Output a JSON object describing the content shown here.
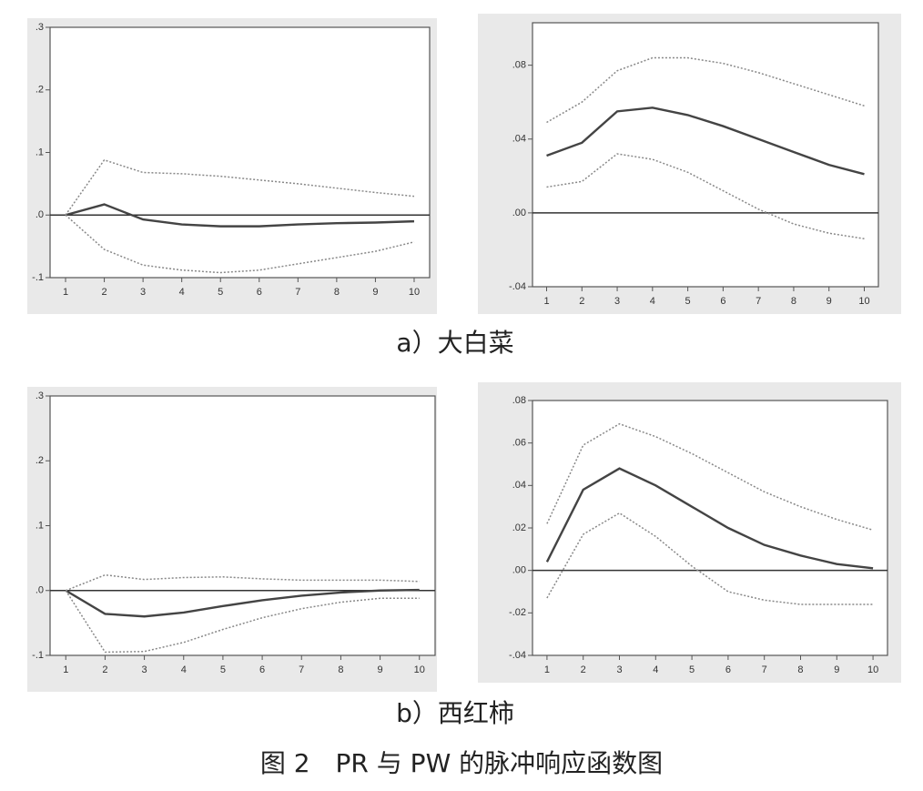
{
  "chart_data": [
    {
      "type": "line",
      "x": [
        1,
        2,
        3,
        4,
        5,
        6,
        7,
        8,
        9,
        10
      ],
      "xlim": [
        0.6,
        10.4
      ],
      "xticks": [
        1,
        2,
        3,
        4,
        5,
        6,
        7,
        8,
        9,
        10
      ],
      "ylim": [
        -0.1,
        0.3
      ],
      "yticks": [
        {
          "value": -0.1,
          "label": "-.1"
        },
        {
          "value": 0,
          "label": ".0"
        },
        {
          "value": 0.1,
          "label": ".1"
        },
        {
          "value": 0.2,
          "label": ".2"
        },
        {
          "value": 0.3,
          "label": ".3"
        }
      ],
      "reference_line": 0,
      "series": [
        {
          "color": "#444444",
          "dashed": false,
          "values": [
            0,
            0.017,
            -0.007,
            -0.015,
            -0.018,
            -0.018,
            -0.015,
            -0.013,
            -0.012,
            -0.01
          ]
        },
        {
          "color": "#888888",
          "dashed": true,
          "values": [
            0,
            0.088,
            0.068,
            0.066,
            0.062,
            0.056,
            0.05,
            0.043,
            0.036,
            0.03
          ]
        },
        {
          "color": "#888888",
          "dashed": true,
          "values": [
            0,
            -0.055,
            -0.08,
            -0.088,
            -0.092,
            -0.088,
            -0.078,
            -0.068,
            -0.058,
            -0.043
          ]
        }
      ]
    },
    {
      "type": "line",
      "x": [
        1,
        2,
        3,
        4,
        5,
        6,
        7,
        8,
        9,
        10
      ],
      "xlim": [
        0.6,
        10.4
      ],
      "xticks": [
        1,
        2,
        3,
        4,
        5,
        6,
        7,
        8,
        9,
        10
      ],
      "ylim": [
        -0.04,
        0.103
      ],
      "yticks": [
        {
          "value": -0.04,
          "label": "-.04"
        },
        {
          "value": 0,
          "label": ".00"
        },
        {
          "value": 0.04,
          "label": ".04"
        },
        {
          "value": 0.08,
          "label": ".08"
        }
      ],
      "reference_line": 0,
      "series": [
        {
          "color": "#444444",
          "dashed": false,
          "values": [
            0.031,
            0.038,
            0.055,
            0.057,
            0.053,
            0.047,
            0.04,
            0.033,
            0.026,
            0.021
          ]
        },
        {
          "color": "#888888",
          "dashed": true,
          "values": [
            0.049,
            0.06,
            0.077,
            0.084,
            0.084,
            0.081,
            0.076,
            0.07,
            0.064,
            0.058
          ]
        },
        {
          "color": "#888888",
          "dashed": true,
          "values": [
            0.014,
            0.017,
            0.032,
            0.029,
            0.022,
            0.012,
            0.002,
            -0.006,
            -0.011,
            -0.014
          ]
        }
      ]
    },
    {
      "type": "line",
      "x": [
        1,
        2,
        3,
        4,
        5,
        6,
        7,
        8,
        9,
        10
      ],
      "xlim": [
        0.6,
        10.4
      ],
      "xticks": [
        1,
        2,
        3,
        4,
        5,
        6,
        7,
        8,
        9,
        10
      ],
      "ylim": [
        -0.1,
        0.3
      ],
      "yticks": [
        {
          "value": -0.1,
          "label": "-.1"
        },
        {
          "value": 0,
          "label": ".0"
        },
        {
          "value": 0.1,
          "label": ".1"
        },
        {
          "value": 0.2,
          "label": ".2"
        },
        {
          "value": 0.3,
          "label": ".3"
        }
      ],
      "reference_line": 0,
      "series": [
        {
          "color": "#444444",
          "dashed": false,
          "values": [
            0,
            -0.036,
            -0.04,
            -0.034,
            -0.024,
            -0.015,
            -0.008,
            -0.003,
            0,
            0.001
          ]
        },
        {
          "color": "#888888",
          "dashed": true,
          "values": [
            0,
            0.024,
            0.017,
            0.02,
            0.021,
            0.018,
            0.016,
            0.016,
            0.016,
            0.014
          ]
        },
        {
          "color": "#888888",
          "dashed": true,
          "values": [
            0,
            -0.095,
            -0.094,
            -0.08,
            -0.06,
            -0.042,
            -0.028,
            -0.018,
            -0.012,
            -0.012
          ]
        }
      ]
    },
    {
      "type": "line",
      "x": [
        1,
        2,
        3,
        4,
        5,
        6,
        7,
        8,
        9,
        10
      ],
      "xlim": [
        0.6,
        10.4
      ],
      "xticks": [
        1,
        2,
        3,
        4,
        5,
        6,
        7,
        8,
        9,
        10
      ],
      "ylim": [
        -0.04,
        0.08
      ],
      "yticks": [
        {
          "value": -0.04,
          "label": "-.04"
        },
        {
          "value": -0.02,
          "label": "-.02"
        },
        {
          "value": 0,
          "label": ".00"
        },
        {
          "value": 0.02,
          "label": ".02"
        },
        {
          "value": 0.04,
          "label": ".04"
        },
        {
          "value": 0.06,
          "label": ".06"
        },
        {
          "value": 0.08,
          "label": ".08"
        }
      ],
      "reference_line": 0,
      "series": [
        {
          "color": "#444444",
          "dashed": false,
          "values": [
            0.004,
            0.038,
            0.048,
            0.04,
            0.03,
            0.02,
            0.012,
            0.007,
            0.003,
            0.001
          ]
        },
        {
          "color": "#888888",
          "dashed": true,
          "values": [
            0.022,
            0.059,
            0.069,
            0.063,
            0.055,
            0.046,
            0.037,
            0.03,
            0.024,
            0.019
          ]
        },
        {
          "color": "#888888",
          "dashed": true,
          "values": [
            -0.013,
            0.017,
            0.027,
            0.016,
            0.002,
            -0.01,
            -0.014,
            -0.016,
            -0.016,
            -0.016
          ]
        }
      ]
    }
  ],
  "captions": [
    "a）大白菜",
    "b）西红柿"
  ],
  "figure_title": "图 2　PR 与 PW 的脉冲响应函数图"
}
